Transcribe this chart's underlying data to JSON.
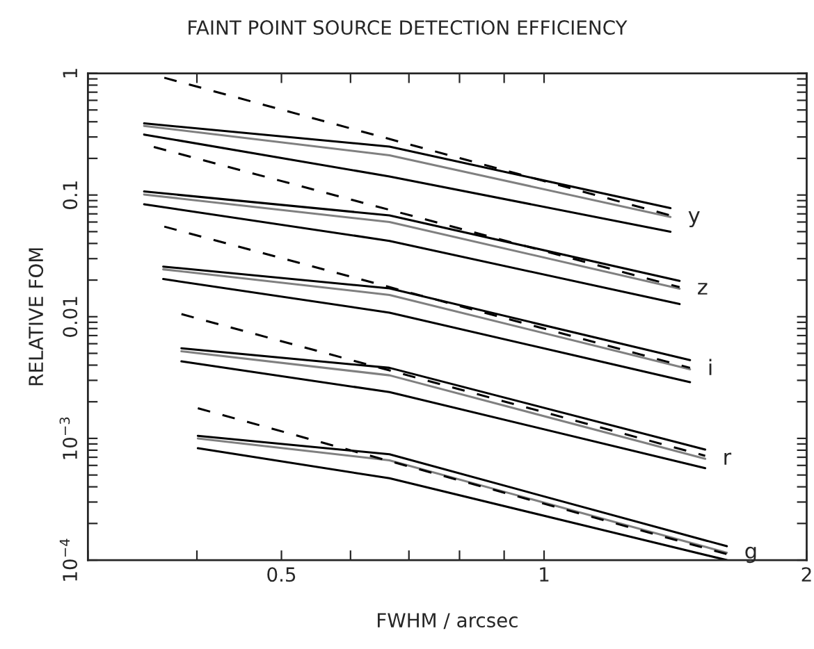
{
  "chart_data": {
    "type": "line",
    "title": "FAINT POINT SOURCE DETECTION EFFICIENCY",
    "xlabel": "FWHM / arcsec",
    "ylabel": "RELATIVE FOM",
    "log": "xy",
    "grid": false,
    "legend": false,
    "marker": "none",
    "xlim": [
      0.3,
      2
    ],
    "ylim": [
      0.0001,
      1
    ],
    "xticks": [
      {
        "value": 0.3,
        "label": null
      },
      {
        "value": 0.4,
        "label": null
      },
      0.5,
      {
        "value": 0.6,
        "label": null
      },
      {
        "value": 0.7,
        "label": null
      },
      {
        "value": 0.8,
        "label": null
      },
      {
        "value": 0.9,
        "label": null
      },
      1,
      2
    ],
    "yticks": [
      {
        "value": 0.0001,
        "label": "10$^{−4}$"
      },
      {
        "value": 0.0002,
        "label": null
      },
      {
        "value": 0.0003,
        "label": null
      },
      {
        "value": 0.0004,
        "label": null
      },
      {
        "value": 0.0005,
        "label": null
      },
      {
        "value": 0.0006,
        "label": null
      },
      {
        "value": 0.0007,
        "label": null
      },
      {
        "value": 0.0008,
        "label": null
      },
      {
        "value": 0.0009,
        "label": null
      },
      {
        "value": 0.001,
        "label": "10$^{−3}$"
      },
      {
        "value": 0.002,
        "label": null
      },
      {
        "value": 0.003,
        "label": null
      },
      {
        "value": 0.004,
        "label": null
      },
      {
        "value": 0.005,
        "label": null
      },
      {
        "value": 0.006,
        "label": null
      },
      {
        "value": 0.007,
        "label": null
      },
      {
        "value": 0.008,
        "label": null
      },
      {
        "value": 0.009,
        "label": null
      },
      0.01,
      {
        "value": 0.02,
        "label": null
      },
      {
        "value": 0.03,
        "label": null
      },
      {
        "value": 0.04,
        "label": null
      },
      {
        "value": 0.05,
        "label": null
      },
      {
        "value": 0.06,
        "label": null
      },
      {
        "value": 0.07,
        "label": null
      },
      {
        "value": 0.08,
        "label": null
      },
      {
        "value": 0.09,
        "label": null
      },
      0.1,
      {
        "value": 0.2,
        "label": null
      },
      {
        "value": 0.3,
        "label": null
      },
      {
        "value": 0.4,
        "label": null
      },
      {
        "value": 0.5,
        "label": null
      },
      {
        "value": 0.6,
        "label": null
      },
      {
        "value": 0.7,
        "label": null
      },
      {
        "value": 0.8,
        "label": null
      },
      {
        "value": 0.9,
        "label": null
      },
      1
    ],
    "series": [
      {
        "color": "#000000",
        "line_style": "solid",
        "x": [
          0.348,
          0.665,
          1.396
        ],
        "values": [
          0.388,
          0.25,
          0.078
        ]
      },
      {
        "color": "#808080",
        "line_style": "solid",
        "x": [
          0.348,
          0.665,
          1.396
        ],
        "values": [
          0.37,
          0.212,
          0.066
        ]
      },
      {
        "color": "#000000",
        "line_style": "solid",
        "x": [
          0.348,
          0.665,
          1.396
        ],
        "values": [
          0.314,
          0.142,
          0.05
        ]
      },
      {
        "color": "#000000",
        "line_style": "dashed",
        "x": [
          0.367,
          1.396
        ],
        "values": [
          0.92,
          0.068
        ]
      },
      {
        "color": "#000000",
        "line_style": "solid",
        "x": [
          0.348,
          0.665,
          1.43
        ],
        "values": [
          0.107,
          0.068,
          0.0197
        ]
      },
      {
        "color": "#808080",
        "line_style": "solid",
        "x": [
          0.348,
          0.665,
          1.43
        ],
        "values": [
          0.101,
          0.06,
          0.017
        ]
      },
      {
        "color": "#000000",
        "line_style": "solid",
        "x": [
          0.348,
          0.665,
          1.43
        ],
        "values": [
          0.084,
          0.042,
          0.0127
        ]
      },
      {
        "color": "#000000",
        "line_style": "dashed",
        "x": [
          0.357,
          1.43
        ],
        "values": [
          0.248,
          0.0175
        ]
      },
      {
        "color": "#000000",
        "line_style": "solid",
        "x": [
          0.366,
          0.665,
          1.47
        ],
        "values": [
          0.0258,
          0.0171,
          0.0044
        ]
      },
      {
        "color": "#808080",
        "line_style": "solid",
        "x": [
          0.366,
          0.665,
          1.47
        ],
        "values": [
          0.0245,
          0.0151,
          0.0037
        ]
      },
      {
        "color": "#000000",
        "line_style": "solid",
        "x": [
          0.366,
          0.665,
          1.47
        ],
        "values": [
          0.0204,
          0.0108,
          0.0029
        ]
      },
      {
        "color": "#000000",
        "line_style": "dashed",
        "x": [
          0.367,
          1.47
        ],
        "values": [
          0.055,
          0.0038
        ]
      },
      {
        "color": "#000000",
        "line_style": "solid",
        "x": [
          0.384,
          0.665,
          1.53
        ],
        "values": [
          0.0055,
          0.0038,
          0.00081
        ]
      },
      {
        "color": "#808080",
        "line_style": "solid",
        "x": [
          0.384,
          0.665,
          1.53
        ],
        "values": [
          0.0052,
          0.0033,
          0.00068
        ]
      },
      {
        "color": "#000000",
        "line_style": "solid",
        "x": [
          0.384,
          0.665,
          1.53
        ],
        "values": [
          0.0043,
          0.0024,
          0.00057
        ]
      },
      {
        "color": "#000000",
        "line_style": "dashed",
        "x": [
          0.384,
          1.53
        ],
        "values": [
          0.0105,
          0.00072
        ]
      },
      {
        "color": "#000000",
        "line_style": "solid",
        "x": [
          0.401,
          0.665,
          1.62
        ],
        "values": [
          0.00105,
          0.00074,
          0.00013
        ]
      },
      {
        "color": "#808080",
        "line_style": "solid",
        "x": [
          0.401,
          0.665,
          1.62
        ],
        "values": [
          0.001,
          0.00066,
          0.000115
        ]
      },
      {
        "color": "#000000",
        "line_style": "solid",
        "x": [
          0.401,
          0.665,
          1.62
        ],
        "values": [
          0.00083,
          0.00047,
          0.0001
        ]
      },
      {
        "color": "#000000",
        "line_style": "dashed",
        "x": [
          0.401,
          1.62
        ],
        "values": [
          0.00177,
          0.000112
        ]
      }
    ],
    "annotations": [
      {
        "text": "y",
        "x": 1.396,
        "y": 0.066
      },
      {
        "text": "z",
        "x": 1.43,
        "y": 0.017
      },
      {
        "text": "i",
        "x": 1.47,
        "y": 0.0037
      },
      {
        "text": "r",
        "x": 1.53,
        "y": 0.00068
      },
      {
        "text": "g",
        "x": 1.62,
        "y": 0.000115
      }
    ]
  }
}
